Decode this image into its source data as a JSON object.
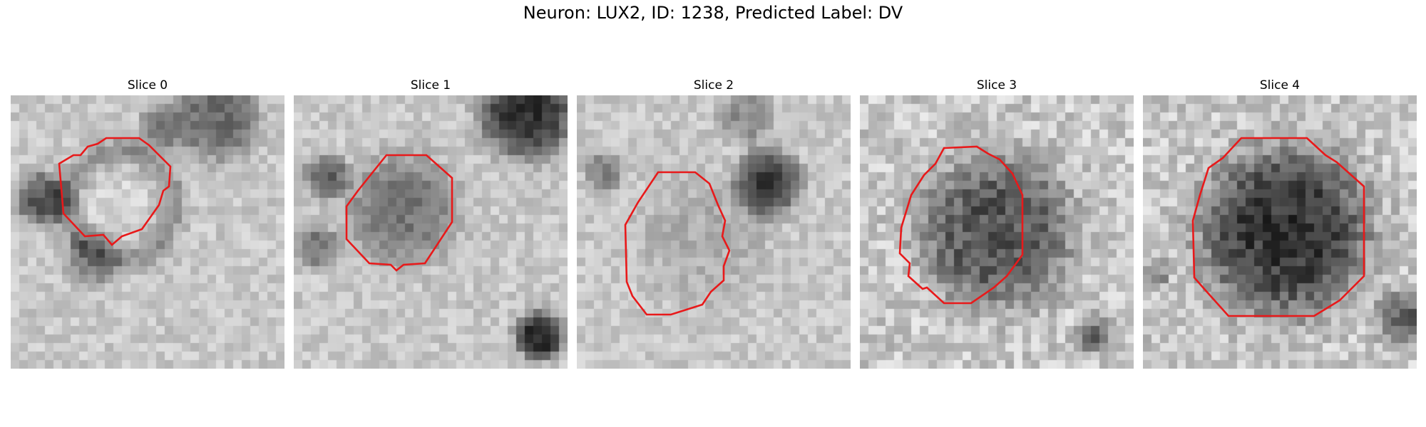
{
  "figure": {
    "title": "Neuron: LUX2, ID: 1238, Predicted Label: DV"
  },
  "colors": {
    "outline": "#e8191a",
    "background": "#ffffff"
  },
  "panels": [
    {
      "title": "Slice 0",
      "image_type": "grayscale-microscopy-crop",
      "structure": "round cell body with dark membrane ring",
      "seed": 11
    },
    {
      "title": "Slice 1",
      "image_type": "grayscale-microscopy-crop",
      "structure": "round darker cell body",
      "seed": 23
    },
    {
      "title": "Slice 2",
      "image_type": "grayscale-microscopy-crop",
      "structure": "lighter cell body with dark region at upper right",
      "seed": 37
    },
    {
      "title": "Slice 3",
      "image_type": "grayscale-microscopy-crop",
      "structure": "dark noisy round cell body",
      "seed": 41
    },
    {
      "title": "Slice 4",
      "image_type": "grayscale-microscopy-crop",
      "structure": "large dark round cell body",
      "seed": 53
    }
  ]
}
